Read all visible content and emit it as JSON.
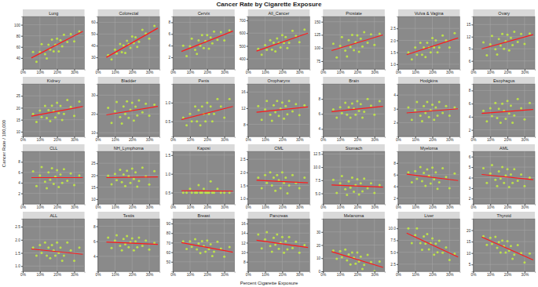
{
  "chart_data": {
    "type": "scatter",
    "title": "Cancer Rate by Cigarette Exposure",
    "x_label": "Percent Cigarette Exposure",
    "y_label": "Cancer Rate / 100,000",
    "color": "#c8f53c",
    "grid": true,
    "x": [
      6,
      8,
      10,
      11,
      13,
      14,
      15,
      16,
      17,
      18,
      19,
      20,
      21,
      22,
      23,
      24,
      26,
      28,
      30,
      33
    ],
    "xlim": [
      0,
      36
    ],
    "xticks": [
      {
        "value": 0,
        "label": "0%"
      },
      {
        "value": 10,
        "label": "10%"
      },
      {
        "value": 20,
        "label": "20%"
      },
      {
        "value": 30,
        "label": "30%"
      }
    ],
    "fit_x": [
      5,
      35
    ],
    "series": [
      {
        "name": "Lung",
        "ylim": [
          20,
          115
        ],
        "yticks": [
          40,
          60,
          80,
          100
        ],
        "fit": [
          40,
          88
        ],
        "values": [
          51,
          33,
          51,
          65,
          47,
          39,
          64,
          55,
          73,
          52,
          64,
          75,
          52,
          72,
          61,
          82,
          69,
          83,
          70,
          88
        ]
      },
      {
        "name": "Colorectal",
        "ylim": [
          20,
          65
        ],
        "yticks": [
          30,
          40,
          50,
          60
        ],
        "fit": [
          30,
          55
        ],
        "values": [
          32.0,
          28.3,
          36.6,
          33.2,
          41.5,
          34.5,
          40.1,
          33.8,
          44.2,
          41.4,
          38.1,
          47.9,
          42.1,
          47.2,
          39.0,
          43.4,
          53.5,
          50.4,
          46.0,
          56.9
        ]
      },
      {
        "name": "Cervix",
        "ylim": [
          0,
          9
        ],
        "yticks": [
          2,
          4,
          6,
          8
        ],
        "fit": [
          3,
          6.5
        ],
        "values": [
          4.0,
          2.2,
          3.9,
          5.2,
          3.3,
          2.6,
          4.9,
          4.0,
          5.8,
          3.6,
          4.8,
          5.8,
          3.5,
          5.4,
          4.4,
          6.4,
          5.0,
          6.3,
          4.9,
          6.6
        ]
      },
      {
        "name": "All_Cancer",
        "ylim": [
          320,
          730
        ],
        "yticks": [
          400,
          500,
          600,
          700
        ],
        "fit": [
          460,
          600
        ],
        "values": [
          477,
          432,
          507,
          470,
          545,
          472,
          525,
          457,
          558,
          527,
          489,
          584,
          523,
          569,
          484,
          525,
          618,
          579,
          529,
          627
        ]
      },
      {
        "name": "Prostate",
        "ylim": [
          60,
          160
        ],
        "yticks": [
          75,
          100,
          125,
          150
        ],
        "fit": [
          95,
          125
        ],
        "values": [
          108,
          82,
          104,
          121,
          95,
          84,
          115,
          102,
          125,
          96,
          111,
          124,
          93,
          118,
          103,
          130,
          110,
          126,
          106,
          127
        ]
      },
      {
        "name": "Vulva & Vagina",
        "ylim": [
          0.8,
          3.0
        ],
        "yticks": [
          {
            "value": 1,
            "label": "1.0"
          },
          1.5,
          {
            "value": 2,
            "label": "2.0"
          },
          2.5
        ],
        "fit": [
          1.4,
          2.1
        ],
        "values": [
          1.5,
          1.2,
          1.7,
          1.4,
          1.9,
          1.4,
          1.7,
          1.3,
          1.9,
          1.7,
          1.5,
          2.1,
          1.7,
          2.0,
          1.5,
          1.7,
          2.2,
          2.0,
          1.7,
          2.3
        ]
      },
      {
        "name": "Ovary",
        "ylim": [
          4,
          17
        ],
        "yticks": [
          6,
          9,
          12,
          15
        ],
        "fit": [
          9,
          12.5
        ],
        "values": [
          10.6,
          7.4,
          10.1,
          12.2,
          8.9,
          7.6,
          11.4,
          9.8,
          12.7,
          9.0,
          10.9,
          12.5,
          8.6,
          11.7,
          9.9,
          13.2,
          10.7,
          12.7,
          10.2,
          12.8
        ]
      },
      {
        "name": "Kidney",
        "ylim": [
          8,
          30
        ],
        "yticks": [
          10,
          15,
          20,
          25
        ],
        "fit": [
          16.5,
          20.5
        ],
        "values": [
          17.4,
          14.1,
          18.8,
          16.1,
          20.8,
          15.7,
          19.0,
          14.4,
          20.9,
          18.6,
          16.0,
          22.1,
          17.8,
          20.8,
          14.9,
          17.4,
          23.3,
          20.4,
          16.6,
          22.6
        ]
      },
      {
        "name": "Bladder",
        "ylim": [
          8,
          36
        ],
        "yticks": [
          10,
          20,
          30
        ],
        "fit": [
          19.5,
          24
        ],
        "values": [
          23.3,
          15.2,
          21.5,
          26.4,
          18.3,
          14.9,
          24.0,
          20.0,
          26.7,
          17.9,
          22.2,
          26.0,
          16.5,
          23.9,
          19.2,
          27.2,
          20.9,
          25.4,
          19.1,
          24.9
        ]
      },
      {
        "name": "Penis",
        "ylim": [
          0.1,
          1.5
        ],
        "yticks": [
          0.5,
          {
            "value": 1,
            "label": "1.0"
          }
        ],
        "fit": [
          0.55,
          0.9
        ],
        "values": [
          0.6,
          0.4,
          0.7,
          0.5,
          0.9,
          0.5,
          0.8,
          0.4,
          0.9,
          0.7,
          0.5,
          1.0,
          0.7,
          0.9,
          0.5,
          0.7,
          1.1,
          0.9,
          0.6,
          1.1
        ]
      },
      {
        "name": "Oropharynx",
        "ylim": [
          5,
          18
        ],
        "yticks": [
          8,
          12,
          16
        ],
        "fit": [
          11,
          12.3
        ],
        "values": [
          12.5,
          9.1,
          11.7,
          13.8,
          10.4,
          8.9,
          12.7,
          11.0,
          13.8,
          10.1,
          11.9,
          13.4,
          9.4,
          12.5,
          10.5,
          13.8,
          11.2,
          13.0,
          10.3,
          12.7
        ]
      },
      {
        "name": "Brain",
        "ylim": [
          3,
          10
        ],
        "yticks": [
          4,
          6,
          8
        ],
        "fit": [
          6.3,
          7
        ],
        "values": [
          6.6,
          5.5,
          6.9,
          6.1,
          7.5,
          5.9,
          6.9,
          5.5,
          7.4,
          6.7,
          5.9,
          7.7,
          6.4,
          7.3,
          5.5,
          6.3,
          8.0,
          7.1,
          5.9,
          7.7
        ]
      },
      {
        "name": "Hodgkins",
        "ylim": [
          1,
          4.8
        ],
        "yticks": [
          2,
          3,
          4
        ],
        "fit": [
          2.7,
          3.0
        ],
        "values": [
          3.1,
          2.2,
          2.9,
          3.5,
          2.5,
          2.1,
          3.2,
          2.7,
          3.5,
          2.4,
          2.9,
          3.3,
          2.2,
          3.1,
          2.5,
          3.5,
          2.7,
          3.2,
          2.5,
          3.1
        ]
      },
      {
        "name": "Esophagus",
        "ylim": [
          1,
          9
        ],
        "yticks": [
          2,
          4,
          6,
          8
        ],
        "fit": [
          4.5,
          5.1
        ],
        "values": [
          4.9,
          3.3,
          5.3,
          4.1,
          6.1,
          3.8,
          5.2,
          3.1,
          6.0,
          4.9,
          3.7,
          6.4,
          4.5,
          5.7,
          3.1,
          4.2,
          6.7,
          5.3,
          3.6,
          6.1
        ]
      },
      {
        "name": "CLL",
        "ylim": [
          0,
          10
        ],
        "yticks": [
          2,
          4,
          6,
          8
        ],
        "fit": [
          5.0,
          5.0
        ],
        "values": [
          6.2,
          3.4,
          5.4,
          7.0,
          4.2,
          3.0,
          6.0,
          4.6,
          6.8,
          3.8,
          5.2,
          6.4,
          3.2,
          5.6,
          4.0,
          6.6,
          4.4,
          5.8,
          3.6,
          5.4
        ]
      },
      {
        "name": "NH_Lymphoma",
        "ylim": [
          8,
          30
        ],
        "yticks": [
          10,
          15,
          20,
          25
        ],
        "fit": [
          19.0,
          19.3
        ],
        "values": [
          19.8,
          16.2,
          20.6,
          17.9,
          22.3,
          17.1,
          20.3,
          15.5,
          21.9,
          19.6,
          16.8,
          22.8,
          18.4,
          21.2,
          15.2,
          17.6,
          23.2,
          19.5,
          16.1,
          21.7
        ]
      },
      {
        "name": "Kaposi",
        "ylim": [
          0.2,
          1.6
        ],
        "yticks": [
          0.5,
          {
            "value": 1,
            "label": "1.0"
          },
          1.5
        ],
        "fit": [
          0.55,
          0.54
        ],
        "values": [
          0.5,
          0.5,
          0.6,
          0.5,
          0.5,
          0.5,
          0.7,
          0.5,
          0.5,
          0.6,
          0.5,
          0.5,
          0.5,
          0.8,
          0.5,
          0.5,
          0.6,
          0.5,
          0.5,
          0.5
        ]
      },
      {
        "name": "CML",
        "ylim": [
          0.8,
          2.8
        ],
        "yticks": [
          {
            "value": 1,
            "label": "1.0"
          },
          1.5,
          {
            "value": 2,
            "label": "2.0"
          },
          2.5
        ],
        "fit": [
          1.7,
          1.6
        ],
        "values": [
          1.8,
          1.4,
          1.9,
          1.6,
          2.0,
          1.5,
          1.8,
          1.3,
          1.9,
          1.7,
          1.4,
          2.0,
          1.6,
          1.8,
          1.2,
          1.5,
          1.9,
          1.6,
          1.4,
          1.8
        ]
      },
      {
        "name": "Stomach",
        "ylim": [
          3,
          13
        ],
        "yticks": [
          {
            "value": 5,
            "label": "5.0"
          },
          7.5,
          {
            "value": 10,
            "label": "10.0"
          },
          12.5
        ],
        "fit": [
          6.6,
          6.2
        ],
        "values": [
          7.6,
          5.1,
          6.9,
          8.3,
          5.8,
          4.7,
          7.3,
          6.1,
          8.0,
          5.3,
          6.6,
          7.7,
          4.8,
          6.9,
          5.4,
          7.8,
          6.0,
          6.9,
          5.1,
          6.6
        ]
      },
      {
        "name": "Myeloma",
        "ylim": [
          1,
          10
        ],
        "yticks": [
          2,
          4,
          6,
          8
        ],
        "fit": [
          6.1,
          5.0
        ],
        "values": [
          6.4,
          4.7,
          6.6,
          5.3,
          7.3,
          4.9,
          6.3,
          4.1,
          6.9,
          5.8,
          4.5,
          7.2,
          5.2,
          6.4,
          3.6,
          4.7,
          7.1,
          5.6,
          3.7,
          6.2
        ]
      },
      {
        "name": "AML",
        "ylim": [
          1.5,
          6.5
        ],
        "yticks": [
          2,
          3,
          4,
          5,
          6
        ],
        "fit": [
          4.3,
          3.8
        ],
        "values": [
          4.9,
          3.5,
          4.4,
          5.2,
          3.8,
          3.2,
          4.6,
          3.9,
          5.0,
          3.5,
          4.2,
          4.8,
          3.1,
          4.3,
          3.5,
          4.8,
          3.7,
          4.3,
          3.2,
          4.0
        ]
      },
      {
        "name": "ALL",
        "ylim": [
          0.8,
          2.8
        ],
        "yticks": [
          {
            "value": 1,
            "label": "1.0"
          },
          1.5,
          {
            "value": 2,
            "label": "2.0"
          },
          2.5
        ],
        "fit": [
          1.65,
          1.45
        ],
        "values": [
          1.7,
          1.4,
          1.8,
          1.5,
          1.9,
          1.4,
          1.7,
          1.3,
          1.8,
          1.6,
          1.4,
          1.9,
          1.5,
          1.7,
          1.2,
          1.4,
          1.9,
          1.6,
          1.2,
          1.7
        ]
      },
      {
        "name": "Testis",
        "ylim": [
          2,
          9
        ],
        "yticks": [
          4,
          6,
          8
        ],
        "fit": [
          5.9,
          5.6
        ],
        "values": [
          6.5,
          5.1,
          6.1,
          6.8,
          5.4,
          4.8,
          6.3,
          5.6,
          6.7,
          5.2,
          5.9,
          6.4,
          4.8,
          6.0,
          5.2,
          6.5,
          5.4,
          6.1,
          4.9,
          5.8
        ]
      },
      {
        "name": "Breast",
        "ylim": [
          40,
          95
        ],
        "yticks": [
          50,
          60,
          70,
          80,
          90
        ],
        "fit": [
          70,
          60
        ],
        "values": [
          71.3,
          63.4,
          71.5,
          65.6,
          73.7,
          63.0,
          69.1,
          59.1,
          71.6,
          66.5,
          60.5,
          72.2,
          63.1,
          68.3,
          56.0,
          60.5,
          71.0,
          63.9,
          55.3,
          65.5
        ]
      },
      {
        "name": "Pancreas",
        "ylim": [
          6,
          17
        ],
        "yticks": [
          8,
          10,
          12,
          14,
          16
        ],
        "fit": [
          12.5,
          11.0
        ],
        "values": [
          13.7,
          10.8,
          12.7,
          14.2,
          11.3,
          10.1,
          13.0,
          11.6,
          13.7,
          10.7,
          12.0,
          13.2,
          9.9,
          12.3,
          10.6,
          13.2,
          10.9,
          12.2,
          9.9,
          11.5
        ]
      },
      {
        "name": "Melanoma",
        "ylim": [
          0,
          40
        ],
        "yticks": [
          0,
          10,
          20,
          30
        ],
        "fit": [
          15,
          3
        ],
        "values": [
          15.8,
          9.6,
          15.4,
          10.8,
          16.6,
          8.4,
          12.8,
          5.2,
          14.4,
          10.4,
          5.8,
          14.4,
          7.4,
          11.2,
          1.8,
          5.0,
          12.6,
          7.0,
          0.2,
          7.4
        ]
      },
      {
        "name": "Liver",
        "ylim": [
          1,
          12
        ],
        "yticks": [
          2.5,
          {
            "value": 5,
            "label": "5.0"
          },
          7.5,
          {
            "value": 10,
            "label": "10.0"
          }
        ],
        "fit": [
          9,
          4
        ],
        "values": [
          10.0,
          6.9,
          8.6,
          10.0,
          6.9,
          5.5,
          8.3,
          6.8,
          8.8,
          5.6,
          6.9,
          7.9,
          4.5,
          6.8,
          5.0,
          7.4,
          4.9,
          6.0,
          3.4,
          4.7
        ]
      },
      {
        "name": "Thyroid",
        "ylim": [
          2,
          25
        ],
        "yticks": [
          5,
          10,
          15,
          20
        ],
        "fit": [
          17,
          7
        ],
        "values": [
          17.4,
          13.6,
          16.7,
          14.0,
          17.1,
          12.3,
          14.8,
          10.2,
          15.5,
          13.1,
          10.2,
          15.2,
          11.0,
          13.1,
          7.5,
          9.3,
          13.5,
          10.0,
          5.9,
          9.8
        ]
      }
    ]
  }
}
